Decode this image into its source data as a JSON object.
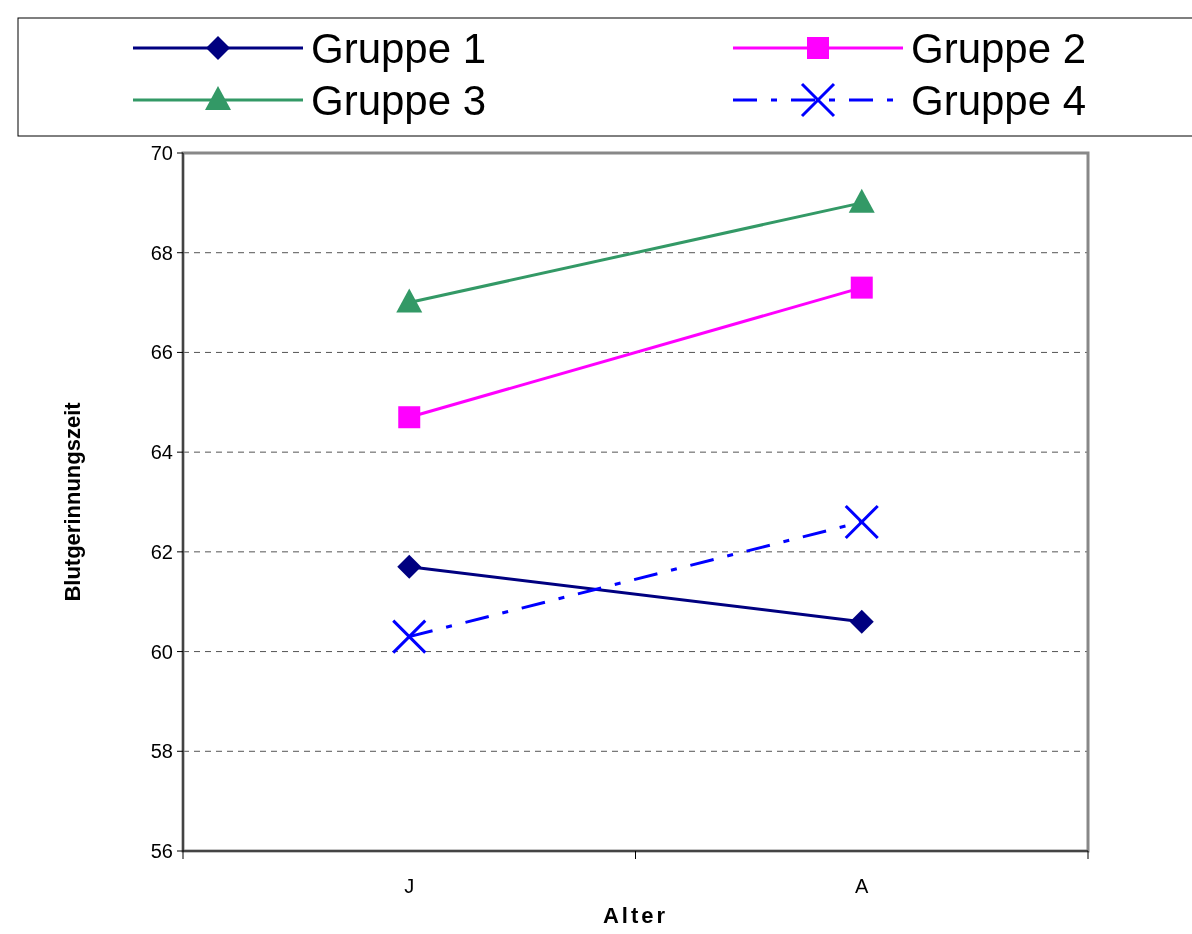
{
  "chart_data": {
    "type": "line",
    "xlabel": "Alter",
    "ylabel": "Blutgerinnungszeit",
    "categories": [
      "J",
      "A"
    ],
    "series": [
      {
        "name": "Gruppe 1",
        "color": "#000080",
        "values": [
          61.7,
          60.6
        ],
        "marker": "diamond",
        "line_style": "solid"
      },
      {
        "name": "Gruppe 2",
        "color": "#ff00ff",
        "values": [
          64.7,
          67.3
        ],
        "marker": "square",
        "line_style": "solid"
      },
      {
        "name": "Gruppe 3",
        "color": "#339966",
        "values": [
          67.0,
          69.0
        ],
        "marker": "triangle",
        "line_style": "solid"
      },
      {
        "name": "Gruppe 4",
        "color": "#0000ff",
        "values": [
          60.3,
          62.6
        ],
        "marker": "cross",
        "line_style": "dashed"
      }
    ],
    "ylim": [
      56,
      70
    ],
    "yticks": [
      56,
      58,
      60,
      62,
      64,
      66,
      68,
      70
    ],
    "grid": "y",
    "legend": "top"
  }
}
